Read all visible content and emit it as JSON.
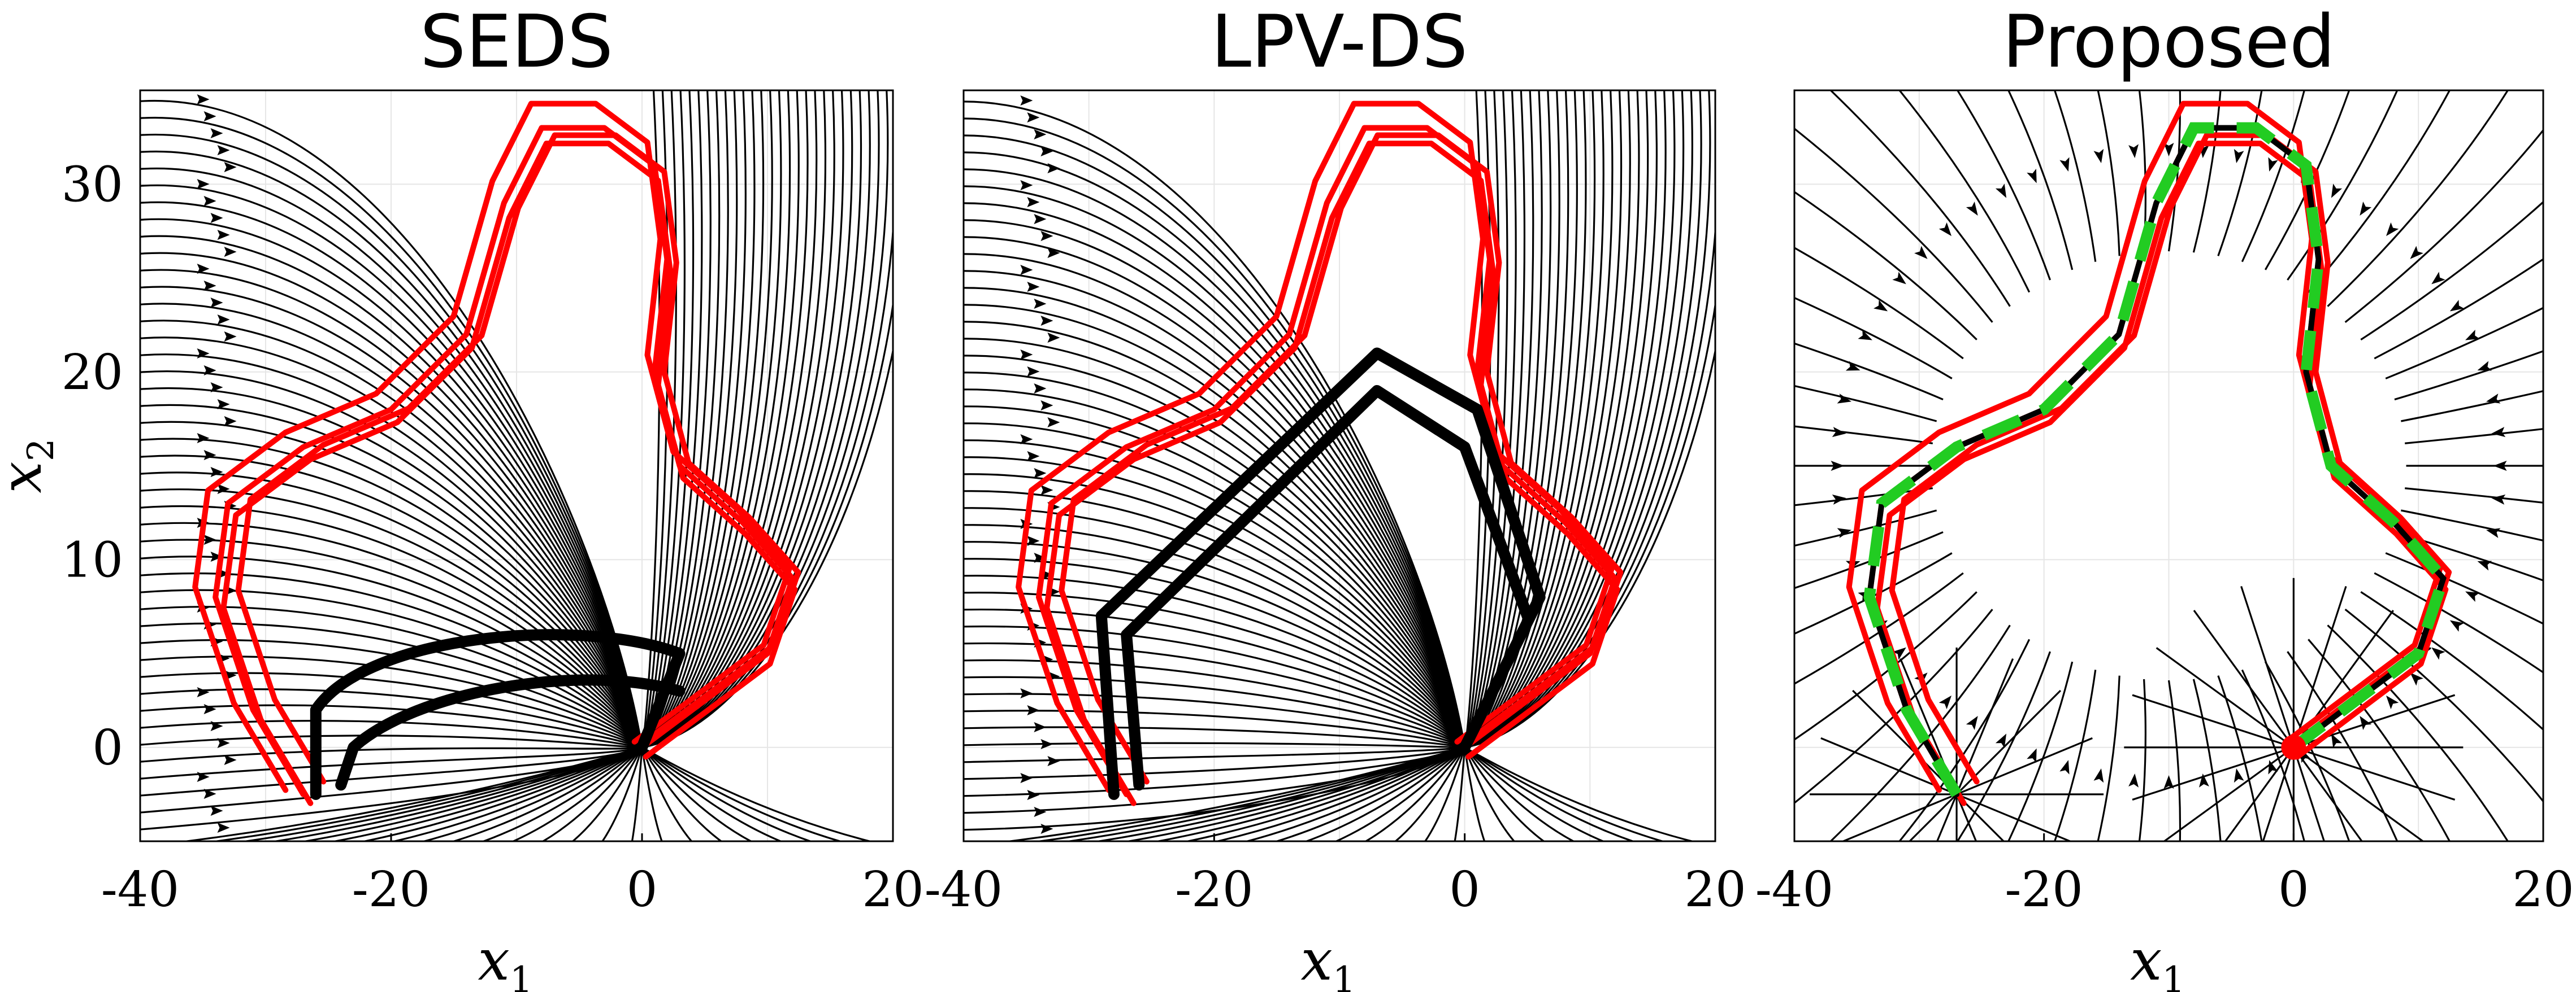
{
  "chart_data": [
    {
      "type": "streamplot",
      "title": "SEDS",
      "xlabel": "x_1",
      "ylabel": "x_2",
      "xlim": [
        -40,
        20
      ],
      "ylim": [
        -5,
        35
      ],
      "xticks": [
        "-40",
        "-20",
        "0",
        "20"
      ],
      "yticks": [
        "0",
        "10",
        "20",
        "30"
      ],
      "series": [
        {
          "name": "demonstrations",
          "color": "#ff0000"
        },
        {
          "name": "reproductions",
          "color": "#000000"
        }
      ],
      "attractor": [
        0,
        0
      ]
    },
    {
      "type": "streamplot",
      "title": "LPV-DS",
      "xlabel": "x_1",
      "xlim": [
        -40,
        20
      ],
      "ylim": [
        -5,
        35
      ],
      "xticks": [
        "-40",
        "-20",
        "0",
        "20"
      ],
      "series": [
        {
          "name": "demonstrations",
          "color": "#ff0000"
        },
        {
          "name": "reproductions",
          "color": "#000000"
        }
      ],
      "attractor": [
        0,
        0
      ]
    },
    {
      "type": "streamplot",
      "title": "Proposed",
      "xlabel": "x_1",
      "xlim": [
        -40,
        20
      ],
      "ylim": [
        -5,
        35
      ],
      "xticks": [
        "-40",
        "-20",
        "0",
        "20"
      ],
      "series": [
        {
          "name": "demonstrations",
          "color": "#ff0000"
        },
        {
          "name": "reproduction",
          "color": "#000000"
        },
        {
          "name": "target path",
          "color": "#22cc22"
        }
      ],
      "attractor": [
        0,
        0
      ]
    }
  ]
}
